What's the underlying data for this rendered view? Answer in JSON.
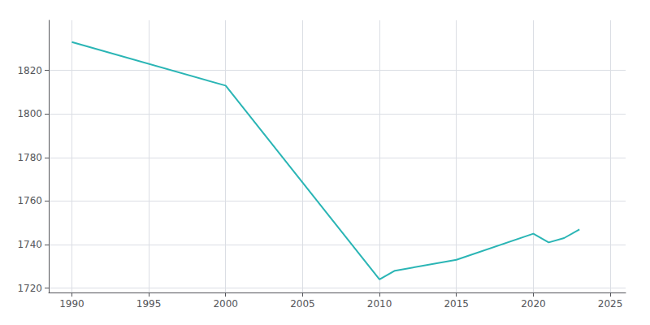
{
  "chart_data": {
    "type": "line",
    "x": [
      1990,
      2000,
      2010,
      2011,
      2015,
      2020,
      2021,
      2022,
      2023
    ],
    "values": [
      1833,
      1813,
      1724,
      1728,
      1733,
      1745,
      1741,
      1743,
      1747
    ],
    "color": "#2ab5b5",
    "xlim": [
      1988.5,
      2026
    ],
    "ylim": [
      1718,
      1843
    ],
    "xticks": [
      1990,
      1995,
      2000,
      2005,
      2010,
      2015,
      2020,
      2025
    ],
    "yticks": [
      1720,
      1740,
      1760,
      1780,
      1800,
      1820
    ],
    "grid": true
  }
}
